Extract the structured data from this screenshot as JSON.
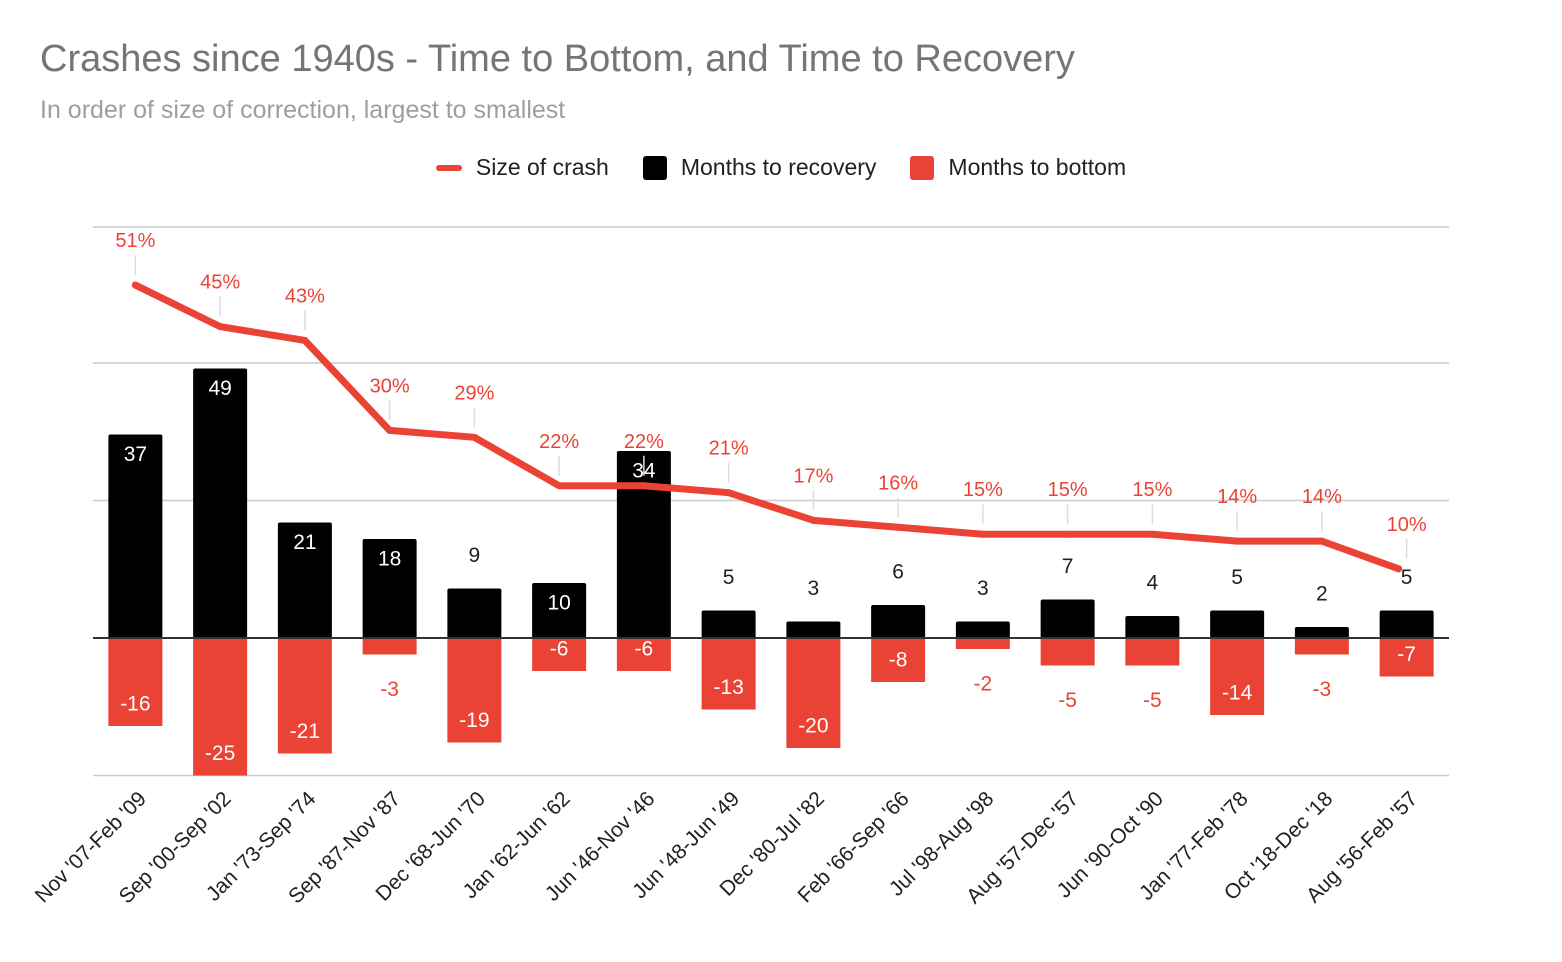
{
  "chart_data": {
    "type": "bar",
    "title": "Crashes since 1940s - Time to Bottom, and Time to Recovery",
    "subtitle": "In order of size of correction, largest to smallest",
    "xlabel": "",
    "ylabel": "",
    "ylim": [
      -25,
      65
    ],
    "legend_position": "top-center",
    "colors": {
      "recovery": "#000000",
      "bottom": "#ea4335",
      "line": "#ea4335",
      "grid": "#cccccc"
    },
    "categories": [
      "Nov '07-Feb '09",
      "Sep '00-Sep '02",
      "Jan '73-Sep '74",
      "Sep '87-Nov '87",
      "Dec '68-Jun '70",
      "Jan '62-Jun '62",
      "Jun '46-Nov '46",
      "Jun '48-Jun '49",
      "Dec '80-Jul '82",
      "Feb '66-Sep '66",
      "Jul '98-Aug '98",
      "Aug '57-Dec '57",
      "Jun '90-Oct '90",
      "Jan '77-Feb '78",
      "Oct '18-Dec '18",
      "Aug '56-Feb '57"
    ],
    "series": [
      {
        "name": "Size of crash",
        "type": "line",
        "values": [
          51,
          45,
          43,
          30,
          29,
          22,
          22,
          21,
          17,
          16,
          15,
          15,
          15,
          14,
          14,
          10
        ],
        "labels": [
          "51%",
          "45%",
          "43%",
          "30%",
          "29%",
          "22%",
          "22%",
          "21%",
          "17%",
          "16%",
          "15%",
          "15%",
          "15%",
          "14%",
          "14%",
          "10%"
        ]
      },
      {
        "name": "Months to recovery",
        "type": "bar",
        "values": [
          37,
          49,
          21,
          18,
          9,
          10,
          34,
          5,
          3,
          6,
          3,
          7,
          4,
          5,
          2,
          5
        ],
        "labels": [
          "37",
          "49",
          "21",
          "18",
          "9",
          "10",
          "34",
          "5",
          "3",
          "6",
          "3",
          "7",
          "4",
          "5",
          "2",
          "5"
        ]
      },
      {
        "name": "Months to bottom",
        "type": "bar",
        "values": [
          -16,
          -25,
          -21,
          -3,
          -19,
          -6,
          -6,
          -13,
          -20,
          -8,
          -2,
          -5,
          -5,
          -14,
          -3,
          -7
        ],
        "labels": [
          "-16",
          "-25",
          "-21",
          "-3",
          "-19",
          "-6",
          "-6",
          "-13",
          "-20",
          "-8",
          "-2",
          "-5",
          "-5",
          "-14",
          "-3",
          "-7"
        ]
      }
    ]
  }
}
